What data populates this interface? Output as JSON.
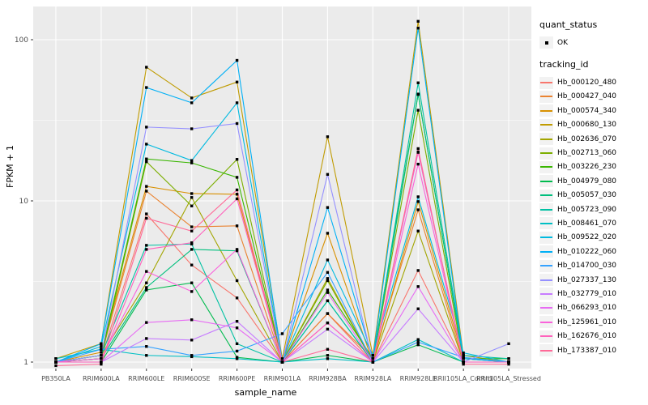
{
  "chart_data": {
    "type": "line",
    "title": "",
    "xlabel": "sample_name",
    "ylabel": "FPKM + 1",
    "y_scale": "log10",
    "y_ticks": [
      1,
      10,
      100
    ],
    "y_tick_labels": [
      "1",
      "10",
      "100"
    ],
    "y_minor_ticks": [
      3.162,
      31.623
    ],
    "ylim": [
      0.93,
      160
    ],
    "grid": true,
    "panel_bg": "#EBEBEB",
    "grid_color": "#FFFFFF",
    "point_color": "#000000",
    "categories": [
      "PB350LA",
      "RRIM600LA",
      "RRIM600LE",
      "RRIM600SE",
      "RRIM600PE",
      "RRIM901LA",
      "RRIM928BA",
      "RRIM928LA",
      "RRIM928LE",
      "RRII105LA_Control",
      "RRII105LA_Stressed"
    ],
    "series": [
      {
        "name": "Hb_000120_480",
        "color": "#F8766D",
        "values": [
          1.0,
          1.05,
          8.3,
          4.0,
          2.5,
          1.0,
          2.0,
          1.0,
          3.7,
          1.0,
          1.0
        ]
      },
      {
        "name": "Hb_000427_040",
        "color": "#EA8331",
        "values": [
          1.0,
          1.1,
          11.5,
          6.9,
          7.0,
          1.0,
          2.0,
          1.05,
          8.8,
          1.0,
          1.0
        ]
      },
      {
        "name": "Hb_000574_340",
        "color": "#D89000",
        "values": [
          1.0,
          1.15,
          12.3,
          11.1,
          11.0,
          1.0,
          6.3,
          1.0,
          9.9,
          1.05,
          1.0
        ]
      },
      {
        "name": "Hb_000680_130",
        "color": "#C09B00",
        "values": [
          1.05,
          1.3,
          67.5,
          43.5,
          54.6,
          1.05,
          25.0,
          1.1,
          130.0,
          1.1,
          1.0
        ]
      },
      {
        "name": "Hb_002636_070",
        "color": "#A3A500",
        "values": [
          1.0,
          1.1,
          3.1,
          10.5,
          3.2,
          1.0,
          3.3,
          1.0,
          6.5,
          1.0,
          1.0
        ]
      },
      {
        "name": "Hb_002713_060",
        "color": "#7CAE00",
        "values": [
          1.0,
          1.05,
          17.5,
          9.3,
          18.1,
          1.0,
          3.2,
          1.0,
          36.5,
          1.0,
          1.0
        ]
      },
      {
        "name": "Hb_003226_230",
        "color": "#39B600",
        "values": [
          1.0,
          1.1,
          18.2,
          17.2,
          14.0,
          1.0,
          2.8,
          1.05,
          46.0,
          1.05,
          1.05
        ]
      },
      {
        "name": "Hb_004979_080",
        "color": "#00BB4E",
        "values": [
          1.0,
          1.0,
          2.8,
          3.1,
          1.07,
          1.0,
          1.1,
          1.0,
          1.28,
          1.0,
          1.0
        ]
      },
      {
        "name": "Hb_005057_030",
        "color": "#00BF7D",
        "values": [
          1.0,
          1.05,
          2.9,
          5.0,
          4.9,
          1.0,
          2.4,
          1.0,
          45.7,
          1.05,
          1.0
        ]
      },
      {
        "name": "Hb_005723_090",
        "color": "#00C1A3",
        "values": [
          1.0,
          1.1,
          5.3,
          5.4,
          1.3,
          1.0,
          2.4,
          1.0,
          54.0,
          1.1,
          1.05
        ]
      },
      {
        "name": "Hb_008461_070",
        "color": "#00BFC4",
        "values": [
          1.05,
          1.2,
          1.1,
          1.08,
          1.05,
          1.0,
          1.05,
          1.0,
          1.38,
          1.0,
          1.0
        ]
      },
      {
        "name": "Hb_009522_020",
        "color": "#00BAE0",
        "values": [
          1.0,
          1.25,
          22.5,
          17.8,
          40.6,
          1.0,
          4.3,
          1.1,
          10.6,
          1.14,
          1.0
        ]
      },
      {
        "name": "Hb_010222_060",
        "color": "#00B0F6",
        "values": [
          1.0,
          1.3,
          50.5,
          40.6,
          74.4,
          1.0,
          9.1,
          1.05,
          118.0,
          1.05,
          1.0
        ]
      },
      {
        "name": "Hb_014700_030",
        "color": "#35A2FF",
        "values": [
          1.0,
          1.2,
          1.25,
          1.1,
          1.17,
          1.5,
          3.6,
          1.0,
          1.33,
          1.07,
          1.0
        ]
      },
      {
        "name": "Hb_027337_130",
        "color": "#9590FF",
        "values": [
          1.0,
          1.1,
          28.7,
          28.0,
          30.2,
          1.0,
          14.6,
          1.0,
          20.0,
          1.0,
          1.3
        ]
      },
      {
        "name": "Hb_032779_010",
        "color": "#C77CFF",
        "values": [
          1.0,
          1.0,
          1.4,
          1.37,
          1.79,
          1.0,
          1.6,
          1.0,
          2.14,
          1.0,
          1.0
        ]
      },
      {
        "name": "Hb_066293_010",
        "color": "#E76BF3",
        "values": [
          1.0,
          1.0,
          1.76,
          1.83,
          1.63,
          1.0,
          2.7,
          1.0,
          2.94,
          1.0,
          1.0
        ]
      },
      {
        "name": "Hb_125961_010",
        "color": "#FA62DB",
        "values": [
          1.0,
          1.05,
          3.65,
          2.74,
          5.0,
          1.0,
          1.75,
          1.0,
          16.9,
          1.0,
          1.0
        ]
      },
      {
        "name": "Hb_162676_010",
        "color": "#FF62BC",
        "values": [
          1.0,
          1.0,
          5.0,
          5.5,
          10.3,
          1.0,
          1.75,
          1.0,
          20.1,
          1.0,
          1.0
        ]
      },
      {
        "name": "Hb_173387_010",
        "color": "#FF6A98",
        "values": [
          0.95,
          0.97,
          7.8,
          6.5,
          11.7,
          1.0,
          1.2,
          1.0,
          21.1,
          0.97,
          0.97
        ]
      }
    ],
    "legend_position": "right"
  },
  "legend": {
    "quant_status_title": "quant_status",
    "quant_status_ok_label": "OK",
    "tracking_id_title": "tracking_id"
  }
}
